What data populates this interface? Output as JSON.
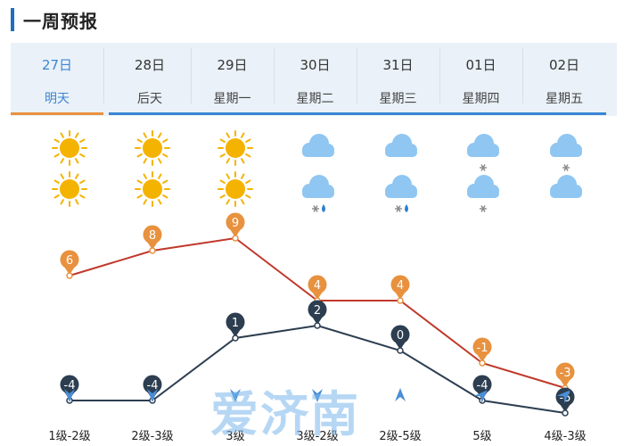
{
  "header": {
    "title": "一周预报"
  },
  "days": [
    {
      "date": "27日",
      "label": "明天",
      "active": true,
      "icon_day": "sun-icon",
      "icon_night": "sun-icon",
      "high": "6",
      "low": "-4",
      "wind_dir": "north-wind-icon",
      "wind": "1级-2级"
    },
    {
      "date": "28日",
      "label": "后天",
      "active": false,
      "icon_day": "sun-icon",
      "icon_night": "sun-icon",
      "high": "8",
      "low": "-4",
      "wind_dir": "north-wind-icon",
      "wind": "2级-3级"
    },
    {
      "date": "29日",
      "label": "星期一",
      "active": false,
      "icon_day": "sun-icon",
      "icon_night": "sun-icon",
      "high": "9",
      "low": "1",
      "wind_dir": "north-wind-icon",
      "wind": "3级"
    },
    {
      "date": "30日",
      "label": "星期二",
      "active": false,
      "icon_day": "cloud-icon",
      "icon_night": "sleet-cloud-icon",
      "high": "4",
      "low": "2",
      "wind_dir": "north-wind-icon",
      "wind": "3级-2级"
    },
    {
      "date": "31日",
      "label": "星期三",
      "active": false,
      "icon_day": "cloud-icon",
      "icon_night": "sleet-cloud-icon",
      "high": "4",
      "low": "0",
      "wind_dir": "south-wind-icon",
      "wind": "2级-5级"
    },
    {
      "date": "01日",
      "label": "星期四",
      "active": false,
      "icon_day": "snow-cloud-icon",
      "icon_night": "snow-cloud-icon",
      "high": "-1",
      "low": "-4",
      "wind_dir": "southwest-wind-icon",
      "wind": "5级"
    },
    {
      "date": "02日",
      "label": "星期五",
      "active": false,
      "icon_day": "snow-cloud-icon",
      "icon_night": "cloud-icon",
      "high": "-3",
      "low": "-5",
      "wind_dir": "southwest-wind-icon",
      "wind": "4级-3级"
    }
  ],
  "chart_data": {
    "type": "line",
    "categories": [
      "27日",
      "28日",
      "29日",
      "30日",
      "31日",
      "01日",
      "02日"
    ],
    "series": [
      {
        "name": "high",
        "values": [
          6,
          8,
          9,
          4,
          4,
          -1,
          -3
        ]
      },
      {
        "name": "low",
        "values": [
          -4,
          -4,
          1,
          2,
          0,
          -4,
          -5
        ]
      }
    ],
    "ylim": [
      -6,
      10
    ]
  },
  "watermark": "爱济南",
  "colors": {
    "accent": "#3b86d3",
    "active": "#e8913e",
    "high_line": "#c0392b",
    "high_marker": "#e8913e",
    "low_line": "#2c3e50",
    "low_marker": "#2c3e50",
    "sun": "#f5b301",
    "cloud": "#8fc6f2",
    "wind_arrow": "#4a8ed6"
  }
}
